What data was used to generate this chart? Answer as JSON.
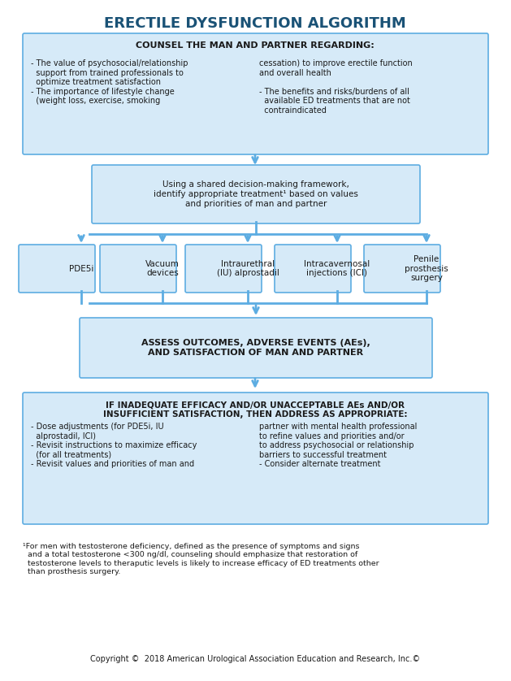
{
  "title": "ERECTILE DYSFUNCTION ALGORITHM",
  "title_fontsize": 13,
  "title_color": "#1a5276",
  "bg_color": "#ffffff",
  "box_fill": "#d6eaf8",
  "box_edge": "#5dade2",
  "box_fill_dark": "#aed6f1",
  "arrow_color": "#5dade2",
  "text_color": "#1a1a1a",
  "box1_title": "COUNSEL THE MAN AND PARTNER REGARDING:",
  "box1_left": "- The value of psychosocial/relationship\n  support from trained professionals to\n  optimize treatment satisfaction\n- The importance of lifestyle change\n  (weight loss, exercise, smoking",
  "box1_right": "cessation) to improve erectile function\nand overall health\n\n- The benefits and risks/burdens of all\n  available ED treatments that are not\n  contraindicated",
  "box2_text": "Using a shared decision-making framework,\nidentify appropriate treatment¹ based on values\nand priorities of man and partner",
  "treatment_boxes": [
    "PDE5i",
    "Vacuum\ndevices",
    "Intraurethral\n(IU) alprostadil",
    "Intracavernosal\ninjections (ICI)",
    "Penile\nprosthesis\nsurgery"
  ],
  "box3_text": "ASSESS OUTCOMES, ADVERSE EVENTS (AEs),\nAND SATISFACTION OF MAN AND PARTNER",
  "box4_title": "IF INADEQUATE EFFICACY AND/OR UNACCEPTABLE AEs AND/OR\nINSUFFICIENT SATISFACTION, THEN ADDRESS AS APPROPRIATE:",
  "box4_left": "- Dose adjustments (for PDE5i, IU\n  alprostadil, ICI)\n- Revisit instructions to maximize efficacy\n  (for all treatments)\n- Revisit values and priorities of man and",
  "box4_right": "partner with mental health professional\nto refine values and priorities and/or\nto address psychosocial or relationship\nbarriers to successful treatment\n- Consider alternate treatment",
  "footnote": "¹For men with testosterone deficiency, defined as the presence of symptoms and signs\n  and a total testosterone <300 ng/dl, counseling should emphasize that restoration of\n  testosterone levels to theraputic levels is likely to increase efficacy of ED treatments other\n  than prosthesis surgery.",
  "copyright": "Copyright ©  2018 American Urological Association Education and Research, Inc.©"
}
